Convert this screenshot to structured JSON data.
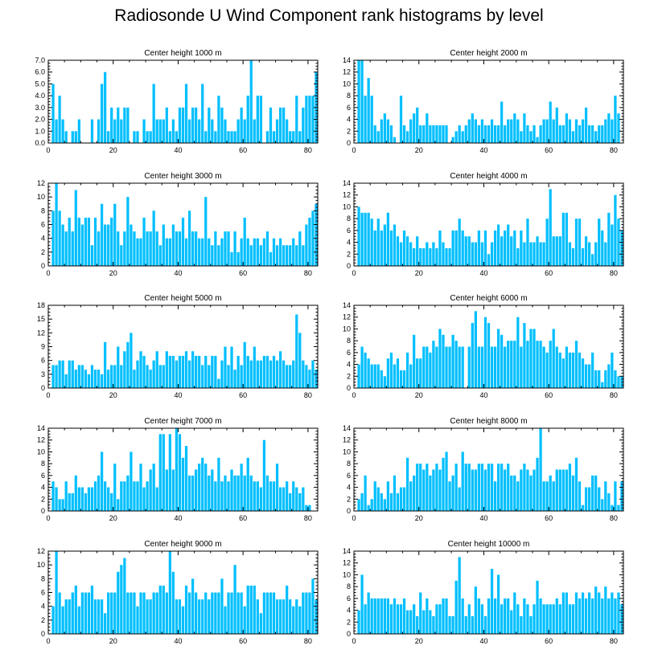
{
  "title": "Radiosonde U Wind Component rank histograms by level",
  "colors": {
    "bar": "#00BFFF",
    "axis": "#000000",
    "background": "#FFFFFF"
  },
  "chart_data": [
    {
      "type": "bar",
      "title": "Center height 1000 m",
      "xlim": [
        0,
        83
      ],
      "ylim": [
        0,
        7
      ],
      "xticks": [
        0,
        20,
        40,
        60,
        80
      ],
      "yticks": [
        0,
        1,
        2,
        3,
        4,
        5,
        6,
        7
      ],
      "ytick_labels": [
        "0.0",
        "1.0",
        "2.0",
        "3.0",
        "4.0",
        "5.0",
        "6.0",
        "7.0"
      ],
      "values": [
        0,
        5,
        2,
        4,
        2,
        1,
        0,
        1,
        1,
        2,
        0,
        0,
        0,
        2,
        0,
        2,
        5,
        6,
        1,
        3,
        2,
        3,
        2,
        3,
        3,
        0,
        1,
        1,
        0,
        2,
        1,
        1,
        5,
        2,
        2,
        2,
        3,
        1,
        2,
        1,
        3,
        3,
        5,
        2,
        3,
        3,
        2,
        5,
        1,
        3,
        2,
        1,
        4,
        3,
        2,
        1,
        1,
        1,
        2,
        3,
        2,
        4,
        7,
        2,
        4,
        4,
        0,
        1,
        3,
        1,
        2,
        3,
        3,
        2,
        1,
        1,
        4,
        1,
        3,
        4,
        4,
        4,
        6
      ]
    },
    {
      "type": "bar",
      "title": "Center height 2000 m",
      "xlim": [
        0,
        83
      ],
      "ylim": [
        0,
        14
      ],
      "xticks": [
        0,
        20,
        40,
        60,
        80
      ],
      "yticks": [
        0,
        2,
        4,
        6,
        8,
        10,
        12,
        14
      ],
      "values": [
        0,
        14,
        14,
        8,
        11,
        8,
        3,
        2,
        4,
        5,
        4,
        3,
        1,
        0,
        8,
        3,
        2,
        4,
        5,
        6,
        3,
        3,
        5,
        3,
        3,
        3,
        3,
        3,
        3,
        0,
        1,
        2,
        3,
        2,
        3,
        4,
        5,
        4,
        3,
        4,
        3,
        3,
        4,
        3,
        3,
        7,
        3,
        4,
        4,
        5,
        4,
        2,
        5,
        3,
        2,
        3,
        1,
        3,
        4,
        4,
        7,
        4,
        6,
        3,
        3,
        5,
        4,
        2,
        4,
        3,
        4,
        6,
        3,
        3,
        2,
        3,
        3,
        4,
        5,
        4,
        8,
        5
      ]
    },
    {
      "type": "bar",
      "title": "Center height 3000 m",
      "xlim": [
        0,
        83
      ],
      "ylim": [
        0,
        12
      ],
      "xticks": [
        0,
        20,
        40,
        60,
        80
      ],
      "yticks": [
        0,
        2,
        4,
        6,
        8,
        10,
        12
      ],
      "values": [
        0,
        8,
        12,
        8,
        6,
        5,
        7,
        5,
        11,
        7,
        6,
        7,
        7,
        3,
        7,
        5,
        9,
        6,
        6,
        7,
        9,
        5,
        3,
        5,
        10,
        6,
        5,
        4,
        4,
        7,
        5,
        5,
        8,
        5,
        3,
        6,
        4,
        4,
        6,
        5,
        5,
        7,
        4,
        8,
        5,
        5,
        4,
        4,
        10,
        4,
        3,
        5,
        3,
        4,
        5,
        5,
        2,
        5,
        2,
        4,
        7,
        4,
        3,
        4,
        4,
        3,
        4,
        5,
        2,
        4,
        3,
        4,
        3,
        3,
        3,
        4,
        3,
        5,
        3,
        6,
        7,
        8,
        9
      ]
    },
    {
      "type": "bar",
      "title": "Center height 4000 m",
      "xlim": [
        0,
        83
      ],
      "ylim": [
        0,
        14
      ],
      "xticks": [
        0,
        20,
        40,
        60,
        80
      ],
      "yticks": [
        0,
        2,
        4,
        6,
        8,
        10,
        12,
        14
      ],
      "values": [
        0,
        10,
        9,
        9,
        9,
        8,
        6,
        8,
        6,
        7,
        9,
        6,
        7,
        5,
        4,
        6,
        5,
        4,
        3,
        5,
        3,
        3,
        4,
        3,
        4,
        3,
        6,
        4,
        3,
        3,
        6,
        6,
        8,
        6,
        5,
        5,
        4,
        4,
        6,
        4,
        6,
        2,
        4,
        6,
        7,
        5,
        6,
        7,
        5,
        6,
        3,
        6,
        4,
        8,
        4,
        4,
        5,
        4,
        4,
        8,
        13,
        5,
        5,
        5,
        9,
        9,
        4,
        3,
        8,
        8,
        3,
        5,
        4,
        2,
        4,
        8,
        6,
        4,
        9,
        7,
        12,
        8,
        6
      ]
    },
    {
      "type": "bar",
      "title": "Center height 5000 m",
      "xlim": [
        0,
        83
      ],
      "ylim": [
        0,
        18
      ],
      "xticks": [
        0,
        20,
        40,
        60,
        80
      ],
      "yticks": [
        0,
        3,
        6,
        9,
        12,
        15,
        18
      ],
      "values": [
        0,
        5,
        5,
        6,
        6,
        3,
        6,
        6,
        4,
        5,
        5,
        4,
        3,
        5,
        4,
        4,
        3,
        10,
        4,
        5,
        5,
        9,
        5,
        8,
        10,
        12,
        4,
        6,
        8,
        7,
        5,
        4,
        6,
        8,
        5,
        5,
        8,
        7,
        7,
        6,
        7,
        7,
        8,
        6,
        8,
        7,
        7,
        5,
        7,
        5,
        7,
        7,
        2,
        6,
        9,
        5,
        9,
        4,
        7,
        5,
        10,
        7,
        6,
        9,
        6,
        6,
        7,
        7,
        6,
        7,
        6,
        8,
        6,
        5,
        5,
        6,
        16,
        12,
        6,
        5,
        4,
        6,
        4
      ]
    },
    {
      "type": "bar",
      "title": "Center height 6000 m",
      "xlim": [
        0,
        83
      ],
      "ylim": [
        0,
        14
      ],
      "xticks": [
        0,
        20,
        40,
        60,
        80
      ],
      "yticks": [
        0,
        2,
        4,
        6,
        8,
        10,
        12,
        14
      ],
      "values": [
        0,
        4,
        7,
        6,
        5,
        4,
        4,
        4,
        3,
        2,
        5,
        6,
        4,
        5,
        3,
        3,
        6,
        4,
        9,
        5,
        5,
        7,
        7,
        6,
        8,
        7,
        10,
        9,
        7,
        7,
        9,
        8,
        7,
        7,
        0,
        7,
        11,
        13,
        7,
        7,
        12,
        11,
        7,
        7,
        10,
        9,
        7,
        8,
        8,
        8,
        12,
        7,
        11,
        8,
        10,
        10,
        8,
        8,
        7,
        6,
        8,
        10,
        7,
        6,
        5,
        7,
        6,
        6,
        8,
        6,
        5,
        4,
        4,
        6,
        3,
        3,
        1,
        3,
        4,
        6,
        3,
        2,
        2
      ]
    },
    {
      "type": "bar",
      "title": "Center height 7000 m",
      "xlim": [
        0,
        83
      ],
      "ylim": [
        0,
        14
      ],
      "xticks": [
        0,
        20,
        40,
        60,
        80
      ],
      "yticks": [
        0,
        2,
        4,
        6,
        8,
        10,
        12,
        14
      ],
      "values": [
        0,
        5,
        4,
        2,
        2,
        5,
        3,
        3,
        6,
        4,
        4,
        3,
        4,
        4,
        5,
        6,
        10,
        5,
        4,
        3,
        8,
        2,
        5,
        5,
        6,
        10,
        5,
        5,
        8,
        4,
        5,
        7,
        8,
        4,
        13,
        13,
        7,
        13,
        7,
        14,
        13,
        9,
        11,
        6,
        6,
        7,
        8,
        9,
        8,
        6,
        7,
        5,
        9,
        5,
        6,
        5,
        7,
        6,
        6,
        8,
        6,
        9,
        6,
        5,
        5,
        4,
        12,
        6,
        5,
        5,
        8,
        4,
        4,
        5,
        3,
        5,
        4,
        3,
        4,
        1,
        1,
        0,
        0
      ]
    },
    {
      "type": "bar",
      "title": "Center height 8000 m",
      "xlim": [
        0,
        83
      ],
      "ylim": [
        0,
        14
      ],
      "xticks": [
        0,
        20,
        40,
        60,
        80
      ],
      "yticks": [
        0,
        2,
        4,
        6,
        8,
        10,
        12,
        14
      ],
      "values": [
        0,
        2,
        3,
        6,
        1,
        2,
        5,
        4,
        3,
        2,
        5,
        3,
        6,
        3,
        4,
        4,
        9,
        5,
        6,
        8,
        8,
        7,
        8,
        6,
        7,
        8,
        7,
        9,
        10,
        5,
        6,
        8,
        4,
        10,
        8,
        8,
        7,
        7,
        8,
        8,
        7,
        8,
        8,
        5,
        8,
        8,
        7,
        8,
        6,
        6,
        5,
        7,
        8,
        7,
        6,
        7,
        9,
        14,
        5,
        5,
        6,
        5,
        7,
        7,
        7,
        7,
        8,
        6,
        9,
        5,
        1,
        4,
        4,
        6,
        6,
        4,
        2,
        5,
        3,
        1,
        5,
        1,
        5
      ]
    },
    {
      "type": "bar",
      "title": "Center height 9000 m",
      "xlim": [
        0,
        83
      ],
      "ylim": [
        0,
        12
      ],
      "xticks": [
        0,
        20,
        40,
        60,
        80
      ],
      "yticks": [
        0,
        2,
        4,
        6,
        8,
        10,
        12
      ],
      "values": [
        0,
        4,
        12,
        6,
        4,
        5,
        5,
        6,
        7,
        4,
        6,
        6,
        6,
        7,
        5,
        5,
        5,
        3,
        6,
        6,
        6,
        9,
        10,
        11,
        6,
        6,
        6,
        4,
        6,
        6,
        5,
        5,
        6,
        6,
        7,
        7,
        6,
        12,
        9,
        5,
        5,
        4,
        7,
        6,
        8,
        6,
        5,
        5,
        6,
        5,
        6,
        6,
        6,
        8,
        4,
        6,
        6,
        10,
        6,
        6,
        4,
        7,
        7,
        7,
        5,
        3,
        6,
        6,
        6,
        6,
        5,
        5,
        5,
        7,
        5,
        4,
        5,
        4,
        6,
        6,
        6,
        8,
        5
      ]
    },
    {
      "type": "bar",
      "title": "Center height 10000 m",
      "xlim": [
        0,
        83
      ],
      "ylim": [
        0,
        14
      ],
      "xticks": [
        0,
        20,
        40,
        60,
        80
      ],
      "yticks": [
        0,
        2,
        4,
        6,
        8,
        10,
        12,
        14
      ],
      "values": [
        0,
        4,
        10,
        5,
        7,
        6,
        6,
        6,
        6,
        6,
        6,
        5,
        6,
        5,
        5,
        6,
        4,
        4,
        5,
        3,
        7,
        4,
        6,
        4,
        3,
        5,
        5,
        6,
        6,
        3,
        3,
        9,
        13,
        6,
        3,
        5,
        3,
        8,
        6,
        5,
        3,
        6,
        11,
        6,
        10,
        5,
        6,
        6,
        4,
        7,
        5,
        3,
        6,
        5,
        3,
        5,
        9,
        6,
        5,
        5,
        5,
        5,
        6,
        5,
        7,
        7,
        5,
        5,
        7,
        6,
        7,
        6,
        7,
        6,
        8,
        7,
        6,
        8,
        6,
        7,
        6,
        7,
        5
      ]
    }
  ]
}
